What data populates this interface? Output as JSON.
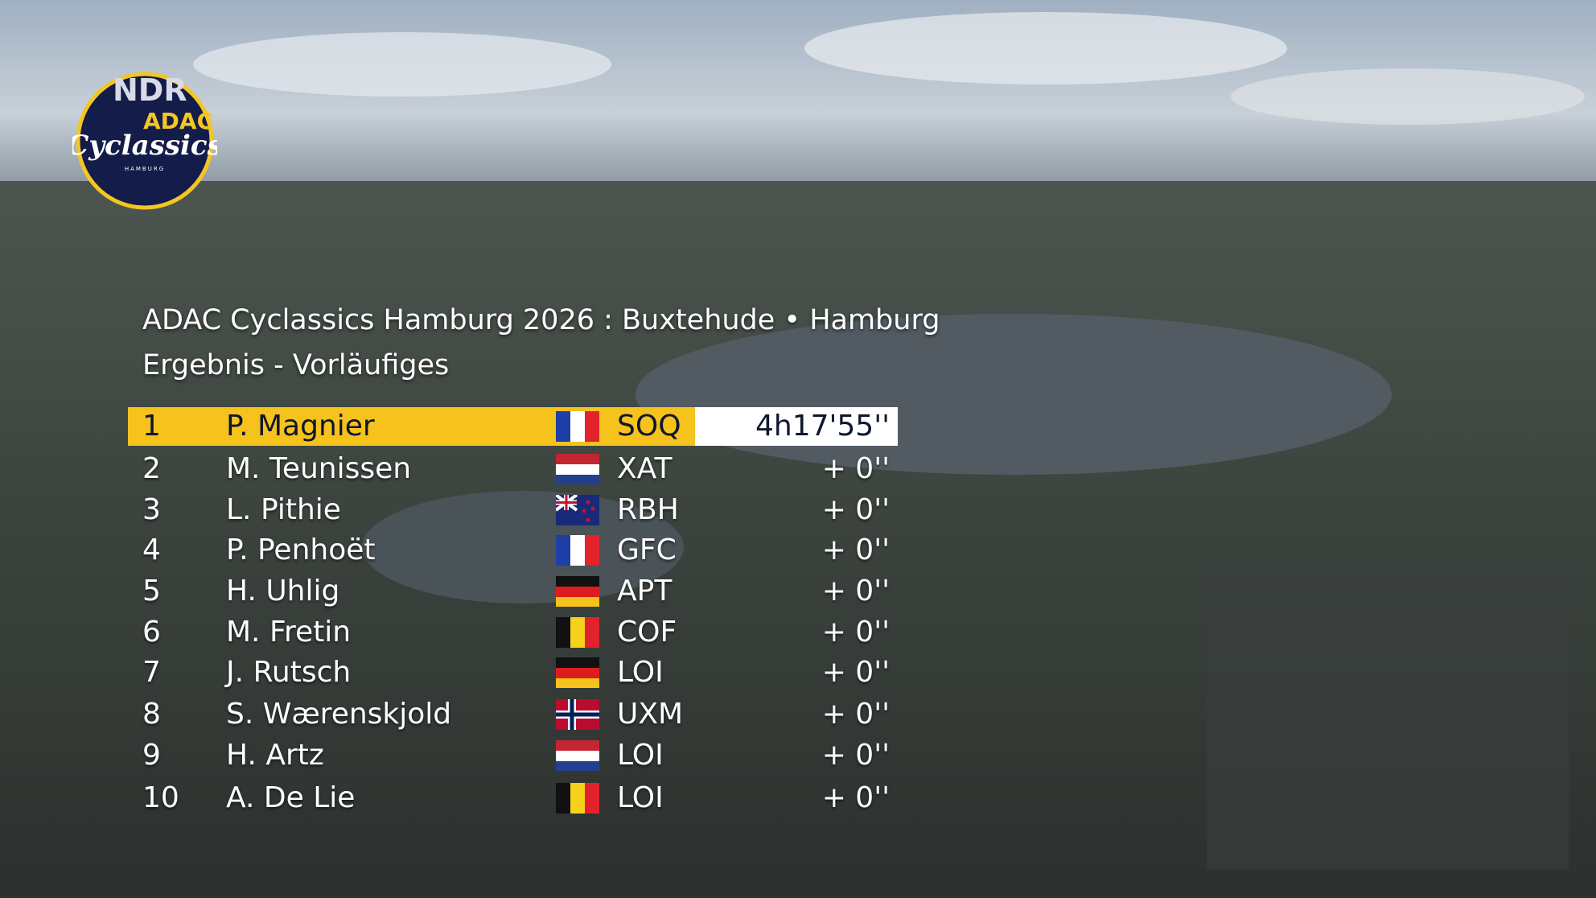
{
  "logo": {
    "broadcaster": "NDR",
    "sponsor": "ADAC",
    "event": "Cyclassics",
    "city": "HAMBURG"
  },
  "header": {
    "title": "ADAC Cyclassics Hamburg 2026 : Buxtehude • Hamburg",
    "subtitle": "Ergebnis - Vorläufiges"
  },
  "table": {
    "rows": [
      {
        "rank": 1,
        "rider": "P. Magnier",
        "team": "SOQ",
        "time": "4h17'55''"
      },
      {
        "rank": 2,
        "rider": "M. Teunissen",
        "team": "XAT",
        "time": "+ 0''"
      },
      {
        "rank": 3,
        "rider": "L. Pithie",
        "team": "RBH",
        "time": "+ 0''"
      },
      {
        "rank": 4,
        "rider": "P. Penhoët",
        "team": "GFC",
        "time": "+ 0''"
      },
      {
        "rank": 5,
        "rider": "H. Uhlig",
        "team": "APT",
        "time": "+ 0''"
      },
      {
        "rank": 6,
        "rider": "M. Fretin",
        "team": "COF",
        "time": "+ 0''"
      },
      {
        "rank": 7,
        "rider": "J. Rutsch",
        "team": "LOI",
        "time": "+ 0''"
      },
      {
        "rank": 8,
        "rider": "S. Wærenskjold",
        "team": "UXM",
        "time": "+ 0''"
      },
      {
        "rank": 9,
        "rider": "H. Artz",
        "team": "LOI",
        "time": "+ 0''"
      },
      {
        "rank": 10,
        "rider": "A. De Lie",
        "team": "LOI",
        "time": "+ 0''"
      }
    ]
  }
}
